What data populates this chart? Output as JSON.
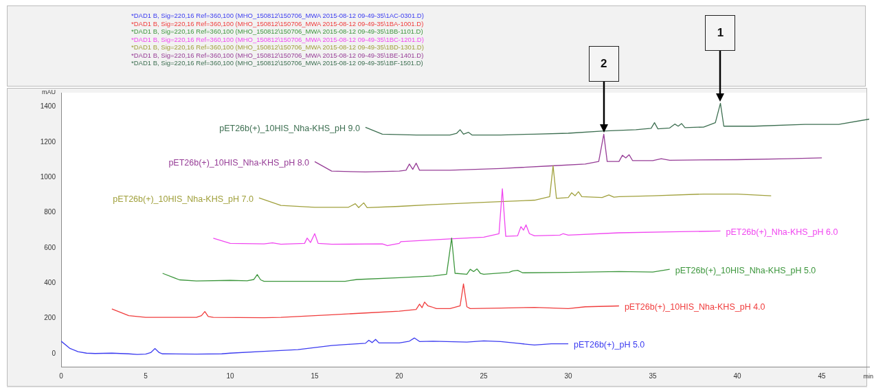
{
  "chart_data": {
    "type": "line",
    "xlabel": "min",
    "ylabel": "mAU",
    "xlim": [
      0,
      47.8
    ],
    "xticks": [
      0,
      5,
      10,
      15,
      20,
      25,
      30,
      35,
      40,
      45
    ],
    "ylim": [
      -75,
      1480
    ],
    "yticks": [
      0,
      200,
      400,
      600,
      800,
      1000,
      1200,
      1400
    ],
    "grid": false,
    "legend": "top",
    "marker": "none",
    "line_style": "solid",
    "series": [
      {
        "name": "*DAD1 B, Sig=220,16 Ref=360,100 (MHO_150812\\150706_MWA 2015-08-12 09-49-35\\1AC-0301.D)",
        "color": "#3b3bf0",
        "x": [
          0,
          0.5,
          1,
          1.5,
          2,
          3,
          4,
          4.5,
          5,
          5.3,
          5.55,
          5.8,
          6,
          8,
          9.5,
          10,
          12,
          14,
          16,
          17,
          18,
          18.2,
          18.4,
          18.6,
          18.8,
          20,
          20.6,
          20.9,
          21.2,
          22,
          24,
          25,
          26,
          27,
          28,
          29,
          30
        ],
        "values": [
          70,
          30,
          10,
          2,
          0,
          2,
          -2,
          -5,
          -3,
          5,
          28,
          5,
          -2,
          -3,
          -2,
          2,
          12,
          22,
          45,
          52,
          58,
          75,
          62,
          80,
          60,
          60,
          70,
          88,
          68,
          70,
          65,
          72,
          68,
          58,
          48,
          55,
          55
        ]
      },
      {
        "name": "*DAD1 B, Sig=220,16 Ref=360,100 (MHO_150812\\150706_MWA 2015-08-12 09-49-35\\1BA-1001.D)",
        "color": "#f03c3c",
        "x": [
          3,
          4,
          5,
          6,
          8,
          8.3,
          8.5,
          8.7,
          9,
          12,
          13,
          14,
          16,
          18,
          20,
          21,
          21.2,
          21.35,
          21.5,
          21.7,
          21.9,
          22.2,
          23,
          23.6,
          23.8,
          24,
          24.2,
          26,
          28,
          30,
          31,
          33
        ],
        "values": [
          253,
          215,
          205,
          205,
          205,
          215,
          238,
          210,
          205,
          203,
          205,
          210,
          220,
          230,
          240,
          250,
          280,
          260,
          292,
          270,
          265,
          255,
          255,
          270,
          395,
          265,
          255,
          258,
          262,
          255,
          265,
          270
        ]
      },
      {
        "name": "*DAD1 B, Sig=220,16 Ref=360,100 (MHO_150812\\150706_MWA 2015-08-12 09-49-35\\1BB-1101.D)",
        "color": "#3c963c",
        "x": [
          6,
          7,
          8,
          10,
          11,
          11.4,
          11.6,
          11.8,
          12,
          15,
          16.8,
          17.5,
          20,
          22,
          22.8,
          23.1,
          23.3,
          24,
          24.2,
          24.4,
          24.6,
          24.8,
          25,
          26.5,
          26.7,
          27,
          27.3,
          30,
          33,
          35,
          36
        ],
        "values": [
          455,
          418,
          412,
          415,
          413,
          420,
          448,
          418,
          410,
          410,
          410,
          420,
          430,
          440,
          450,
          655,
          455,
          450,
          478,
          465,
          480,
          455,
          450,
          460,
          468,
          472,
          458,
          460,
          465,
          462,
          478
        ]
      },
      {
        "name": "*DAD1 B, Sig=220,16 Ref=360,100 (MHO_150812\\150706_MWA 2015-08-12 09-49-35\\1BC-1201.D)",
        "color": "#f046f0",
        "x": [
          9,
          10,
          12,
          12.5,
          13,
          14.4,
          14.55,
          14.75,
          15,
          15.2,
          16,
          19,
          19.3,
          20,
          20.1,
          21,
          23,
          25,
          25.9,
          26.1,
          26.3,
          27,
          27.2,
          27.35,
          27.5,
          27.7,
          28,
          29.5,
          29.7,
          30,
          33,
          36,
          39
        ],
        "values": [
          654,
          625,
          622,
          628,
          620,
          625,
          655,
          630,
          680,
          625,
          620,
          622,
          612,
          625,
          635,
          640,
          650,
          660,
          680,
          935,
          665,
          668,
          720,
          700,
          730,
          680,
          668,
          672,
          680,
          672,
          685,
          690,
          695
        ]
      },
      {
        "name": "*DAD1 B, Sig=220,16 Ref=360,100 (MHO_150812\\150706_MWA 2015-08-12 09-49-35\\1BD-1301.D)",
        "color": "#a0a03c",
        "x": [
          11.7,
          13,
          15,
          17,
          17.4,
          17.6,
          17.9,
          18.1,
          20,
          22,
          25,
          28,
          28.9,
          29.1,
          29.3,
          30,
          30.2,
          30.4,
          30.6,
          30.8,
          32,
          32.4,
          32.7,
          33,
          35,
          38,
          40,
          42
        ],
        "values": [
          883,
          840,
          830,
          830,
          850,
          828,
          855,
          828,
          835,
          845,
          858,
          870,
          890,
          1065,
          880,
          885,
          912,
          895,
          918,
          890,
          885,
          900,
          887,
          890,
          895,
          905,
          905,
          895
        ]
      },
      {
        "name": "*DAD1 B, Sig=220,16 Ref=360,100 (MHO_150812\\150706_MWA 2015-08-12 09-49-35\\1BE-1401.D)",
        "color": "#963c96",
        "x": [
          15,
          16,
          18,
          20,
          20.4,
          20.6,
          20.8,
          21,
          21.2,
          23,
          26,
          29,
          31,
          31.8,
          32.1,
          32.3,
          33,
          33.2,
          33.4,
          33.6,
          33.8,
          35,
          35.5,
          36,
          40,
          43,
          45
        ],
        "values": [
          1089,
          1035,
          1030,
          1035,
          1040,
          1075,
          1045,
          1080,
          1040,
          1040,
          1050,
          1065,
          1075,
          1090,
          1245,
          1090,
          1090,
          1125,
          1110,
          1128,
          1095,
          1095,
          1105,
          1097,
          1100,
          1105,
          1110
        ]
      },
      {
        "name": "*DAD1 B, Sig=220,16 Ref=360,100 (MHO_150812\\150706_MWA 2015-08-12 09-49-35\\1BF-1501.D)",
        "color": "#3c6e50",
        "x": [
          18,
          19,
          21,
          23,
          23.4,
          23.6,
          23.8,
          24.1,
          24.3,
          26,
          28,
          30,
          32,
          34,
          34.9,
          35.1,
          35.3,
          36,
          36.3,
          36.5,
          36.7,
          36.9,
          38,
          38.7,
          39,
          39.2,
          41,
          44,
          46,
          47.8
        ],
        "values": [
          1284,
          1245,
          1240,
          1240,
          1250,
          1270,
          1245,
          1255,
          1240,
          1240,
          1245,
          1250,
          1262,
          1270,
          1278,
          1310,
          1275,
          1280,
          1302,
          1290,
          1305,
          1282,
          1285,
          1310,
          1420,
          1290,
          1290,
          1300,
          1300,
          1330
        ]
      }
    ],
    "annotations": [
      "pET26b(+)_pH 5.0",
      "pET26b(+)_10HIS_Nha-KHS_pH 4.0",
      "pET26b(+)_10HIS_Nha-KHS_pH 5.0",
      "pET26b(+)_Nha-KHS_pH 6.0",
      "pET26b(+)_10HIS_Nha-KHS_pH 7.0",
      "pET26b(+)_10HIS_Nha-KHS_pH 8.0",
      "pET26b(+)_10HIS_Nha-KHS_pH 9.0",
      "1",
      "2"
    ]
  }
}
